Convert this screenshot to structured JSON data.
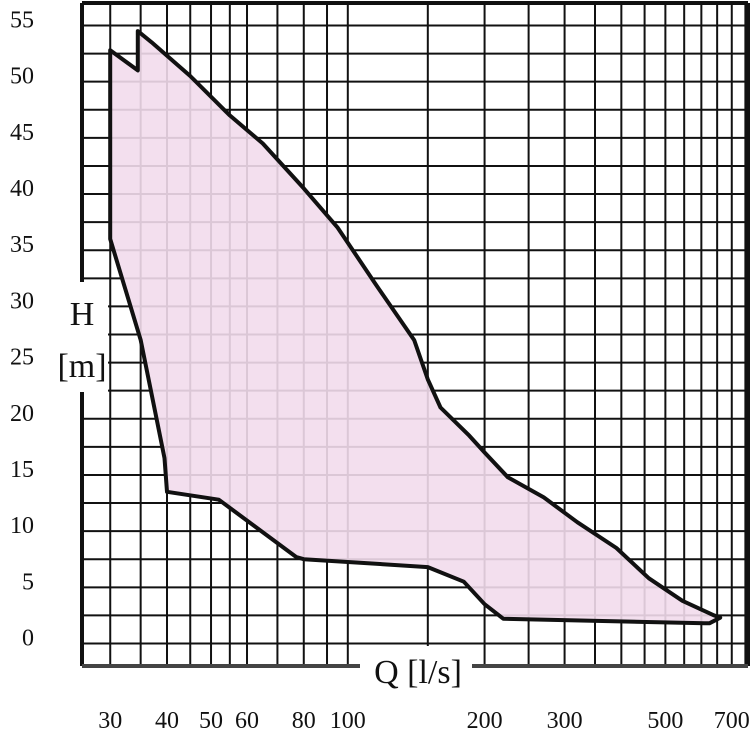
{
  "chart_data": {
    "type": "area",
    "title": "",
    "xlabel": "Q [l/s]",
    "ylabel_line1": "H",
    "ylabel_line2": "[m]",
    "x_scale": "log",
    "xlim": [
      26,
      760
    ],
    "ylim": [
      -2,
      57
    ],
    "grid": true,
    "x_ticks": [
      30,
      40,
      50,
      60,
      80,
      100,
      200,
      300,
      500,
      700
    ],
    "x_gridlines": [
      30,
      35,
      40,
      45,
      50,
      55,
      60,
      70,
      80,
      90,
      100,
      150,
      200,
      250,
      300,
      350,
      400,
      450,
      500,
      550,
      600,
      650,
      700,
      750
    ],
    "y_ticks": [
      0,
      5,
      10,
      15,
      20,
      25,
      30,
      35,
      40,
      45,
      50,
      55
    ],
    "y_gridlines": [
      -2,
      0,
      2.5,
      5,
      7.5,
      10,
      12.5,
      15,
      17.5,
      20,
      22.5,
      25,
      27.5,
      30,
      32.5,
      35,
      37.5,
      40,
      42.5,
      45,
      47.5,
      50,
      52.5,
      55,
      57
    ],
    "fill_color": "#f2dcec",
    "line_color": "#111111",
    "series": [
      {
        "points": [
          [
            30,
            52.8
          ],
          [
            34.5,
            51
          ],
          [
            34.5,
            54.5
          ],
          [
            37,
            53.5
          ],
          [
            45,
            50.5
          ],
          [
            55,
            47
          ],
          [
            65,
            44.5
          ],
          [
            80,
            40.5
          ],
          [
            95,
            37
          ],
          [
            115,
            32
          ],
          [
            140,
            27
          ],
          [
            150,
            23.5
          ],
          [
            160,
            21
          ],
          [
            185,
            18.5
          ],
          [
            200,
            17
          ],
          [
            225,
            14.8
          ],
          [
            270,
            13
          ],
          [
            320,
            10.8
          ],
          [
            390,
            8.5
          ],
          [
            460,
            5.8
          ],
          [
            545,
            3.8
          ],
          [
            640,
            2.5
          ],
          [
            660,
            2.3
          ],
          [
            625,
            1.8
          ],
          [
            610,
            1.8
          ],
          [
            220,
            2.2
          ],
          [
            200,
            3.5
          ],
          [
            180,
            5.5
          ],
          [
            150,
            6.8
          ],
          [
            80,
            7.5
          ],
          [
            77,
            7.7
          ],
          [
            52,
            12.8
          ],
          [
            40,
            13.5
          ],
          [
            39.5,
            16.5
          ],
          [
            37.5,
            21
          ],
          [
            35,
            27
          ],
          [
            30,
            36
          ],
          [
            30,
            52.8
          ]
        ]
      }
    ]
  }
}
